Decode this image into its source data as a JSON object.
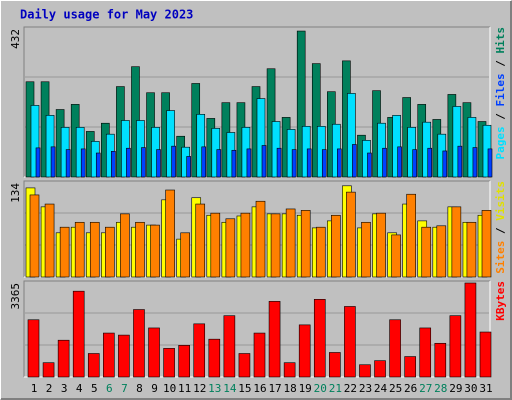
{
  "chart_data": [
    {
      "type": "bar",
      "title": "Daily usage for May 2023",
      "categories": [
        "1",
        "2",
        "3",
        "4",
        "5",
        "6",
        "7",
        "8",
        "9",
        "10",
        "11",
        "12",
        "13",
        "14",
        "15",
        "16",
        "17",
        "18",
        "19",
        "20",
        "21",
        "22",
        "23",
        "24",
        "25",
        "26",
        "27",
        "28",
        "29",
        "30",
        "31"
      ],
      "x_label_colors": [
        "#000000",
        "#000000",
        "#000000",
        "#000000",
        "#000000",
        "#00805c",
        "#00805c",
        "#000000",
        "#000000",
        "#000000",
        "#000000",
        "#000000",
        "#00805c",
        "#00805c",
        "#000000",
        "#000000",
        "#000000",
        "#000000",
        "#000000",
        "#00805c",
        "#00805c",
        "#000000",
        "#000000",
        "#000000",
        "#000000",
        "#000000",
        "#00805c",
        "#00805c",
        "#000000",
        "#000000",
        "#000000"
      ],
      "ylim": [
        0,
        432
      ],
      "yticks": [
        432
      ],
      "legend_separator": " / ",
      "series": [
        {
          "name": "Pages",
          "color": "#00e0ff",
          "values": [
            209,
            180,
            145,
            145,
            104,
            125,
            165,
            165,
            145,
            194,
            87,
            183,
            142,
            130,
            145,
            229,
            162,
            139,
            148,
            148,
            154,
            244,
            107,
            157,
            180,
            145,
            160,
            125,
            206,
            174,
            151
          ]
        },
        {
          "name": "Files",
          "color": "#0040ff",
          "values": [
            85,
            88,
            80,
            82,
            70,
            75,
            84,
            86,
            80,
            90,
            60,
            88,
            80,
            78,
            82,
            92,
            84,
            80,
            82,
            80,
            82,
            95,
            70,
            84,
            88,
            80,
            84,
            76,
            90,
            86,
            82
          ]
        },
        {
          "name": "Hits",
          "color": "#00805c",
          "values": [
            278,
            278,
            197,
            212,
            133,
            157,
            264,
            322,
            246,
            246,
            119,
            273,
            171,
            217,
            217,
            264,
            316,
            174,
            426,
            331,
            249,
            339,
            122,
            252,
            174,
            232,
            212,
            168,
            241,
            217,
            162
          ]
        }
      ]
    },
    {
      "type": "bar",
      "ylim": [
        0,
        134
      ],
      "yticks": [
        134
      ],
      "legend_separator": " / ",
      "series": [
        {
          "name": "Sites",
          "color": "#ff8000",
          "values": [
            117,
            104,
            71,
            78,
            78,
            71,
            90,
            78,
            74,
            124,
            63,
            104,
            91,
            83,
            91,
            108,
            90,
            97,
            95,
            71,
            88,
            121,
            78,
            91,
            60,
            118,
            71,
            73,
            100,
            78,
            95
          ]
        },
        {
          "name": "Visits",
          "color": "#ffff00",
          "values": [
            127,
            100,
            63,
            71,
            63,
            63,
            78,
            71,
            74,
            110,
            54,
            113,
            88,
            78,
            87,
            100,
            90,
            90,
            88,
            70,
            80,
            130,
            70,
            90,
            63,
            104,
            80,
            71,
            100,
            78,
            88
          ]
        }
      ]
    },
    {
      "type": "bar",
      "ylim": [
        0,
        3365
      ],
      "yticks": [
        3365
      ],
      "legend_separator": " / ",
      "series": [
        {
          "name": "KBytes",
          "color": "#ff0000",
          "values": [
            2049,
            512,
            1317,
            3072,
            841,
            1573,
            1500,
            2415,
            1756,
            1025,
            1134,
            1903,
            1354,
            2195,
            841,
            1573,
            2708,
            512,
            1866,
            2781,
            878,
            2525,
            439,
            585,
            2049,
            732,
            1756,
            1207,
            2195,
            3365,
            1610
          ]
        }
      ]
    }
  ]
}
